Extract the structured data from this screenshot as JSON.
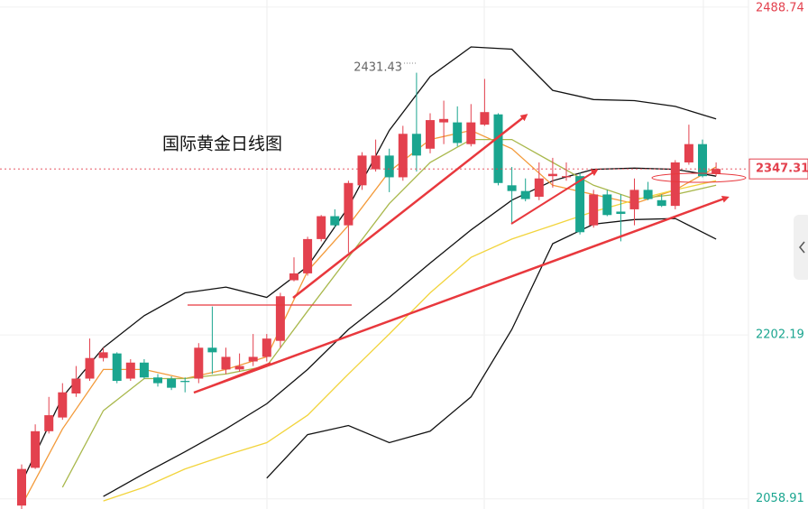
{
  "chart_data": {
    "type": "candlestick",
    "title": "国际黄金日线图",
    "ylim": [
      2050,
      2495
    ],
    "yticks": [
      2058.91,
      2202.19,
      2488.74
    ],
    "up_color": "#e3414e",
    "down_color": "#1aa58f",
    "candles": {
      "open": [
        2053,
        2086,
        2118,
        2130,
        2151,
        2164,
        2182,
        2186,
        2164,
        2178,
        2165,
        2164,
        2162,
        2164,
        2191,
        2172,
        2172,
        2179,
        2183,
        2197,
        2250,
        2256,
        2286,
        2306,
        2298,
        2333,
        2347,
        2359,
        2340,
        2378,
        2365,
        2388,
        2388,
        2369,
        2386,
        2395,
        2333,
        2328,
        2323,
        2341,
        2340,
        2341,
        2298,
        2325,
        2310,
        2312,
        2329,
        2320,
        2315,
        2353,
        2369,
        2343
      ],
      "high": [
        2089,
        2124,
        2148,
        2160,
        2175,
        2199,
        2191,
        2187,
        2181,
        2181,
        2168,
        2166,
        2165,
        2195,
        2227,
        2191,
        2186,
        2203,
        2203,
        2239,
        2270,
        2288,
        2307,
        2312,
        2337,
        2362,
        2373,
        2365,
        2385,
        2431.43,
        2396,
        2407,
        2402,
        2404,
        2426,
        2396,
        2349,
        2339,
        2353,
        2357,
        2353,
        2344,
        2329,
        2329,
        2325,
        2339,
        2336,
        2325,
        2355,
        2386,
        2373,
        2353
      ],
      "low": [
        2050,
        2085,
        2116,
        2128,
        2148,
        2162,
        2179,
        2160,
        2162,
        2164,
        2157,
        2154,
        2152,
        2160,
        2168,
        2168,
        2170,
        2175,
        2179,
        2191,
        2249,
        2254,
        2284,
        2296,
        2274,
        2329,
        2345,
        2327,
        2337,
        2345,
        2361,
        2369,
        2367,
        2367,
        2385,
        2333,
        2299,
        2319,
        2320,
        2331,
        2337,
        2290,
        2296,
        2306,
        2284,
        2298,
        2320,
        2314,
        2312,
        2351,
        2340,
        2341
      ],
      "close": [
        2085,
        2118,
        2132,
        2152,
        2164,
        2182,
        2187,
        2162,
        2178,
        2165,
        2160,
        2156,
        2161,
        2191,
        2187,
        2183,
        2175,
        2183,
        2199,
        2236,
        2256,
        2286,
        2306,
        2298,
        2335,
        2359,
        2359,
        2340,
        2378,
        2359,
        2390,
        2391,
        2370,
        2388,
        2397,
        2335,
        2328,
        2321,
        2339,
        2343,
        2341,
        2292,
        2325,
        2307,
        2308,
        2329,
        2321,
        2315,
        2353,
        2369,
        2341,
        2347.31
      ]
    },
    "overlays": [
      {
        "color": "#111111",
        "x": [
          0,
          3,
          6,
          9,
          12,
          15,
          18,
          21,
          24,
          27,
          30,
          33,
          36,
          39,
          42,
          45,
          48,
          51
        ],
        "values": [
          2073,
          2148,
          2191,
          2219,
          2239,
          2244,
          2235,
          2262,
          2314,
          2381,
          2428,
          2454,
          2452,
          2416,
          2408,
          2407,
          2402,
          2391
        ]
      },
      {
        "color": "#111111",
        "x": [
          6,
          9,
          12,
          15,
          18,
          21,
          24,
          27,
          30,
          33,
          36,
          39,
          42,
          45,
          48,
          51
        ],
        "values": [
          2061,
          2081,
          2100,
          2120,
          2142,
          2172,
          2207,
          2235,
          2265,
          2294,
          2320,
          2337,
          2347,
          2348,
          2347,
          2341
        ]
      },
      {
        "color": "#111111",
        "x": [
          18,
          21,
          24,
          27,
          30,
          33,
          36,
          39,
          42,
          45,
          48,
          51
        ],
        "values": [
          2077,
          2115,
          2123,
          2108,
          2118,
          2148,
          2207,
          2282,
          2299,
          2303,
          2304,
          2286
        ]
      },
      {
        "color": "#f39a3a",
        "x": [
          0,
          3,
          6,
          9,
          12,
          15,
          18,
          21,
          24,
          27,
          30,
          33,
          36,
          39,
          42,
          45,
          48,
          51
        ],
        "values": [
          2053,
          2120,
          2172,
          2172,
          2164,
          2172,
          2183,
          2258,
          2298,
          2345,
          2373,
          2381,
          2365,
          2333,
          2325,
          2317,
          2329,
          2349
        ]
      },
      {
        "color": "#a9b84c",
        "x": [
          3,
          6,
          9,
          12,
          15,
          18,
          21,
          24,
          27,
          30,
          33,
          36,
          39,
          42,
          45,
          48,
          51
        ],
        "values": [
          2069,
          2136,
          2164,
          2164,
          2168,
          2175,
          2223,
          2270,
          2317,
          2353,
          2373,
          2373,
          2353,
          2333,
          2321,
          2325,
          2333
        ]
      },
      {
        "color": "#f2d43c",
        "x": [
          6,
          9,
          12,
          15,
          18,
          21,
          24,
          27,
          30,
          33,
          36,
          39,
          42,
          45,
          48,
          51
        ],
        "values": [
          2057,
          2069,
          2085,
          2097,
          2108,
          2132,
          2168,
          2203,
          2239,
          2270,
          2286,
          2298,
          2310,
          2320,
          2329,
          2337
        ]
      }
    ]
  }
}
